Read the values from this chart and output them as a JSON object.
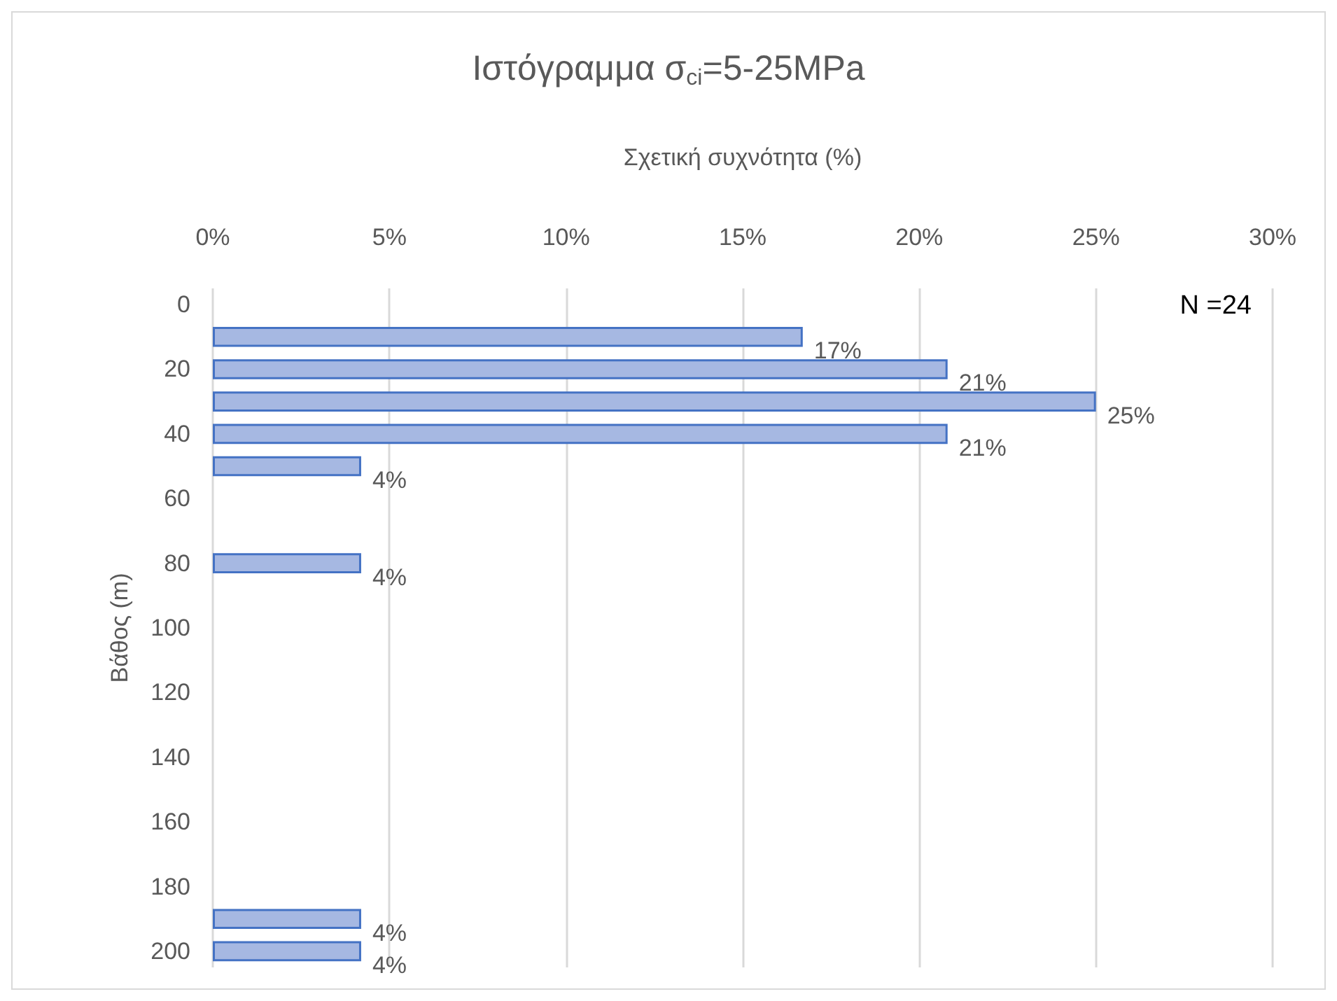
{
  "chart_data": {
    "type": "bar",
    "orientation": "horizontal",
    "title": "Ιστόγραμμα σ$_{ci}$=5-25MPa",
    "xlabel": "Σχετική συχνότητα (%)",
    "ylabel": "Βάθος (m)",
    "categories": [
      "0",
      null,
      "20",
      null,
      "40",
      null,
      "60",
      null,
      "80",
      null,
      "100",
      null,
      "120",
      null,
      "140",
      null,
      "160",
      null,
      "180",
      null,
      "200"
    ],
    "values": [
      null,
      16.7,
      20.8,
      25,
      20.8,
      4.2,
      null,
      null,
      4.2,
      null,
      null,
      null,
      null,
      null,
      null,
      null,
      null,
      null,
      null,
      4.2,
      4.2
    ],
    "value_labels": [
      null,
      "17%",
      "21%",
      "25%",
      "21%",
      "4%",
      null,
      null,
      "4%",
      null,
      null,
      null,
      null,
      null,
      null,
      null,
      null,
      null,
      null,
      "4%",
      "4%"
    ],
    "color": "#a6b8e2",
    "xlim": [
      0,
      30
    ],
    "xticks": [
      {
        "value": 0,
        "label": "0%"
      },
      {
        "value": 5,
        "label": "5%"
      },
      {
        "value": 10,
        "label": "10%"
      },
      {
        "value": 15,
        "label": "15%"
      },
      {
        "value": 20,
        "label": "20%"
      },
      {
        "value": 25,
        "label": "25%"
      },
      {
        "value": 30,
        "label": "30%"
      }
    ],
    "grid": "x",
    "annotations": [
      "N =24"
    ]
  }
}
